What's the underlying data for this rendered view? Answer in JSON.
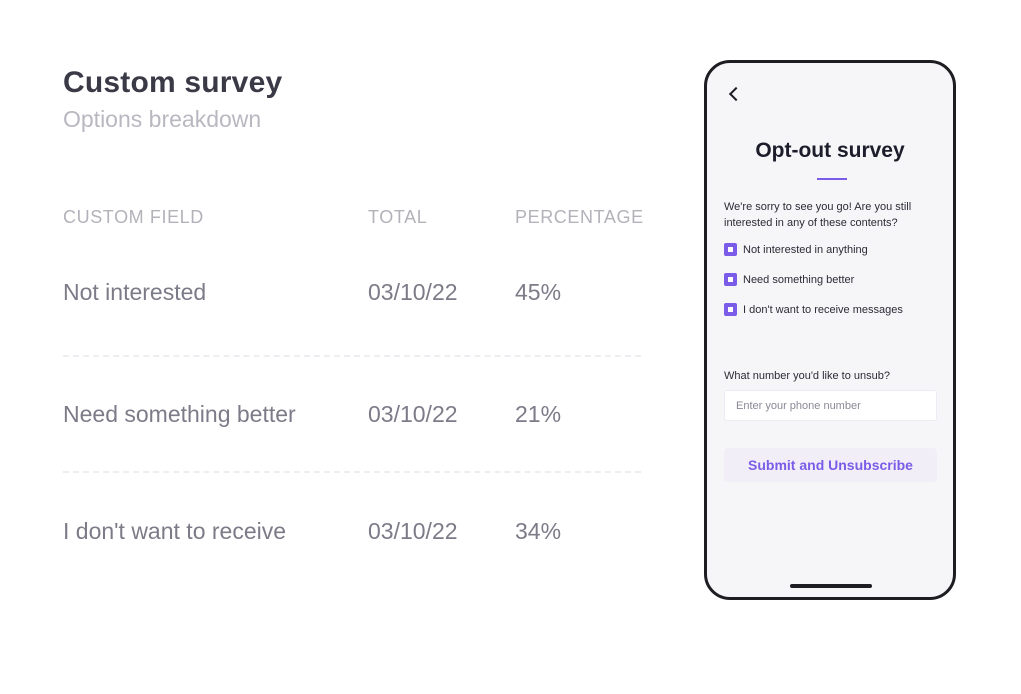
{
  "report": {
    "title": "Custom survey",
    "subtitle": "Options breakdown",
    "columns": [
      "CUSTOM FIELD",
      "TOTAL",
      "PERCENTAGE"
    ],
    "rows": [
      {
        "field": "Not interested",
        "total": "03/10/22",
        "percentage": "45%"
      },
      {
        "field": "Need something better",
        "total": "03/10/22",
        "percentage": "21%"
      },
      {
        "field": "I don't want to receive",
        "total": "03/10/22",
        "percentage": "34%"
      }
    ]
  },
  "phone": {
    "back_icon": "chevron-left-icon",
    "title": "Opt-out survey",
    "question": "We're sorry to see you go! Are you still interested in any of these contents?",
    "options": [
      {
        "label": "Not interested in anything",
        "checked": true
      },
      {
        "label": "Need something better",
        "checked": true
      },
      {
        "label": "I don't want to receive messages",
        "checked": true
      }
    ],
    "phone_label": "What number you'd like to unsub?",
    "phone_placeholder": "Enter your phone number",
    "phone_value": "",
    "submit_label": "Submit and Unsubscribe",
    "accent_color": "#7b5ce8"
  }
}
